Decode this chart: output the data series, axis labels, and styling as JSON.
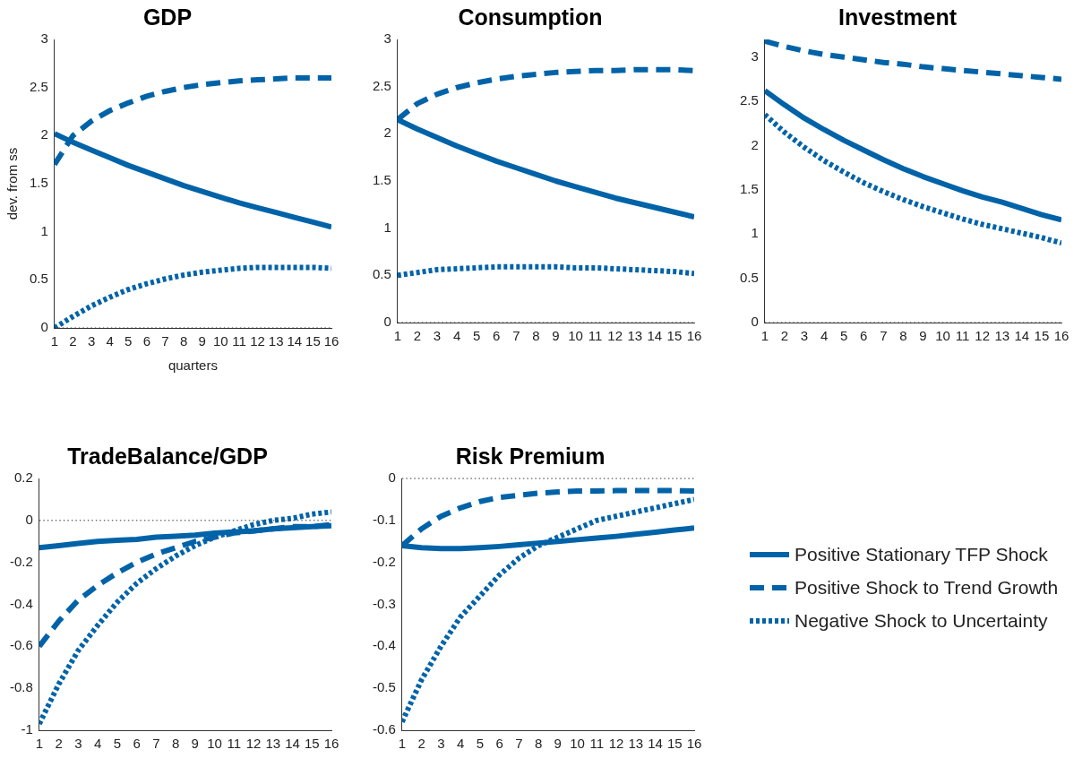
{
  "chart_data": [
    {
      "type": "line",
      "title": "GDP",
      "xlabel": "quarters",
      "ylabel": "dev. from ss",
      "x": [
        1,
        2,
        3,
        4,
        5,
        6,
        7,
        8,
        9,
        10,
        11,
        12,
        13,
        14,
        15,
        16
      ],
      "xlim": [
        1,
        16
      ],
      "xticks": [
        1,
        2,
        3,
        4,
        5,
        6,
        7,
        8,
        9,
        10,
        11,
        12,
        13,
        14,
        15,
        16
      ],
      "ylim": [
        0,
        3
      ],
      "yticks": [
        0,
        0.5,
        1,
        1.5,
        2,
        2.5,
        3
      ],
      "grid": false,
      "legend": false,
      "ref_lines": [
        {
          "axis": "y",
          "value": 0,
          "line_style": "dotted",
          "color": "#333333"
        }
      ],
      "series": [
        {
          "color": "#0063a8",
          "line_style": "solid",
          "values": [
            2.02,
            1.93,
            1.85,
            1.77,
            1.69,
            1.62,
            1.55,
            1.48,
            1.42,
            1.36,
            1.3,
            1.25,
            1.2,
            1.15,
            1.1,
            1.05
          ]
        },
        {
          "color": "#0063a8",
          "line_style": "dashed",
          "values": [
            1.7,
            2.0,
            2.15,
            2.26,
            2.34,
            2.41,
            2.46,
            2.5,
            2.53,
            2.55,
            2.57,
            2.58,
            2.59,
            2.6,
            2.6,
            2.6
          ]
        },
        {
          "color": "#0063a8",
          "line_style": "dotted",
          "values": [
            0.0,
            0.12,
            0.23,
            0.32,
            0.4,
            0.46,
            0.51,
            0.55,
            0.58,
            0.6,
            0.62,
            0.63,
            0.63,
            0.63,
            0.63,
            0.62
          ]
        }
      ]
    },
    {
      "type": "line",
      "title": "Consumption",
      "x": [
        1,
        2,
        3,
        4,
        5,
        6,
        7,
        8,
        9,
        10,
        11,
        12,
        13,
        14,
        15,
        16
      ],
      "xlim": [
        1,
        16
      ],
      "xticks": [
        1,
        2,
        3,
        4,
        5,
        6,
        7,
        8,
        9,
        10,
        11,
        12,
        13,
        14,
        15,
        16
      ],
      "ylim": [
        0,
        3
      ],
      "yticks": [
        0,
        0.5,
        1,
        1.5,
        2,
        2.5,
        3
      ],
      "grid": false,
      "legend": false,
      "ref_lines": [
        {
          "axis": "y",
          "value": 0,
          "line_style": "dotted",
          "color": "#333333"
        }
      ],
      "series": [
        {
          "color": "#0063a8",
          "line_style": "solid",
          "values": [
            2.15,
            2.05,
            1.96,
            1.87,
            1.79,
            1.71,
            1.64,
            1.57,
            1.5,
            1.44,
            1.38,
            1.32,
            1.27,
            1.22,
            1.17,
            1.12
          ]
        },
        {
          "color": "#0063a8",
          "line_style": "dashed",
          "values": [
            2.15,
            2.32,
            2.42,
            2.49,
            2.54,
            2.58,
            2.61,
            2.63,
            2.65,
            2.66,
            2.67,
            2.67,
            2.68,
            2.68,
            2.68,
            2.67
          ]
        },
        {
          "color": "#0063a8",
          "line_style": "dotted",
          "values": [
            0.5,
            0.53,
            0.56,
            0.57,
            0.58,
            0.59,
            0.59,
            0.59,
            0.59,
            0.58,
            0.58,
            0.57,
            0.56,
            0.55,
            0.54,
            0.52
          ]
        }
      ]
    },
    {
      "type": "line",
      "title": "Investment",
      "x": [
        1,
        2,
        3,
        4,
        5,
        6,
        7,
        8,
        9,
        10,
        11,
        12,
        13,
        14,
        15,
        16
      ],
      "xlim": [
        1,
        16
      ],
      "xticks": [
        1,
        2,
        3,
        4,
        5,
        6,
        7,
        8,
        9,
        10,
        11,
        12,
        13,
        14,
        15,
        16
      ],
      "ylim": [
        0,
        3.2
      ],
      "yticks": [
        0,
        0.5,
        1,
        1.5,
        2,
        2.5,
        3
      ],
      "grid": false,
      "legend": false,
      "ref_lines": [
        {
          "axis": "y",
          "value": 0,
          "line_style": "dotted",
          "color": "#333333"
        }
      ],
      "series": [
        {
          "color": "#0063a8",
          "line_style": "solid",
          "values": [
            2.62,
            2.46,
            2.31,
            2.18,
            2.06,
            1.95,
            1.84,
            1.74,
            1.65,
            1.57,
            1.49,
            1.42,
            1.36,
            1.29,
            1.22,
            1.16
          ]
        },
        {
          "color": "#0063a8",
          "line_style": "dashed",
          "values": [
            3.18,
            3.12,
            3.07,
            3.03,
            3.0,
            2.97,
            2.94,
            2.92,
            2.89,
            2.87,
            2.85,
            2.83,
            2.81,
            2.79,
            2.77,
            2.75
          ]
        },
        {
          "color": "#0063a8",
          "line_style": "dotted",
          "values": [
            2.35,
            2.15,
            1.98,
            1.83,
            1.7,
            1.58,
            1.48,
            1.39,
            1.31,
            1.24,
            1.17,
            1.11,
            1.06,
            1.01,
            0.96,
            0.9
          ]
        }
      ]
    },
    {
      "type": "line",
      "title": "TradeBalance/GDP",
      "x": [
        1,
        2,
        3,
        4,
        5,
        6,
        7,
        8,
        9,
        10,
        11,
        12,
        13,
        14,
        15,
        16
      ],
      "xlim": [
        1,
        16
      ],
      "xticks": [
        1,
        2,
        3,
        4,
        5,
        6,
        7,
        8,
        9,
        10,
        11,
        12,
        13,
        14,
        15,
        16
      ],
      "ylim": [
        -1,
        0.2
      ],
      "yticks": [
        -1,
        -0.8,
        -0.6,
        -0.4,
        -0.2,
        0,
        0.2
      ],
      "grid": false,
      "legend": false,
      "ref_lines": [
        {
          "axis": "y",
          "value": 0,
          "line_style": "dotted",
          "color": "#333333"
        }
      ],
      "series": [
        {
          "color": "#0063a8",
          "line_style": "solid",
          "values": [
            -0.13,
            -0.12,
            -0.11,
            -0.1,
            -0.095,
            -0.09,
            -0.08,
            -0.075,
            -0.07,
            -0.06,
            -0.055,
            -0.05,
            -0.04,
            -0.035,
            -0.03,
            -0.025
          ]
        },
        {
          "color": "#0063a8",
          "line_style": "dashed",
          "values": [
            -0.6,
            -0.48,
            -0.38,
            -0.31,
            -0.25,
            -0.2,
            -0.16,
            -0.13,
            -0.1,
            -0.08,
            -0.06,
            -0.05,
            -0.04,
            -0.03,
            -0.03,
            -0.02
          ]
        },
        {
          "color": "#0063a8",
          "line_style": "dotted",
          "values": [
            -0.97,
            -0.78,
            -0.62,
            -0.5,
            -0.39,
            -0.3,
            -0.23,
            -0.17,
            -0.12,
            -0.08,
            -0.05,
            -0.02,
            0.0,
            0.01,
            0.03,
            0.04
          ]
        }
      ]
    },
    {
      "type": "line",
      "title": "Risk Premium",
      "x": [
        1,
        2,
        3,
        4,
        5,
        6,
        7,
        8,
        9,
        10,
        11,
        12,
        13,
        14,
        15,
        16
      ],
      "xlim": [
        1,
        16
      ],
      "xticks": [
        1,
        2,
        3,
        4,
        5,
        6,
        7,
        8,
        9,
        10,
        11,
        12,
        13,
        14,
        15,
        16
      ],
      "ylim": [
        -0.6,
        0
      ],
      "yticks": [
        -0.6,
        -0.5,
        -0.4,
        -0.3,
        -0.2,
        -0.1,
        0
      ],
      "grid": false,
      "legend": "right",
      "ref_lines": [
        {
          "axis": "y",
          "value": 0,
          "line_style": "dotted",
          "color": "#333333"
        }
      ],
      "series": [
        {
          "name": "Positive Stationary TFP Shock",
          "color": "#0063a8",
          "line_style": "solid",
          "values": [
            -0.16,
            -0.165,
            -0.167,
            -0.167,
            -0.165,
            -0.162,
            -0.158,
            -0.154,
            -0.15,
            -0.146,
            -0.142,
            -0.138,
            -0.133,
            -0.128,
            -0.123,
            -0.118
          ]
        },
        {
          "name": "Positive Shock to Trend Growth",
          "color": "#0063a8",
          "line_style": "dashed",
          "values": [
            -0.16,
            -0.12,
            -0.09,
            -0.07,
            -0.055,
            -0.045,
            -0.04,
            -0.035,
            -0.032,
            -0.03,
            -0.03,
            -0.029,
            -0.029,
            -0.029,
            -0.029,
            -0.03
          ]
        },
        {
          "name": "Negative Shock to Uncertainty",
          "color": "#0063a8",
          "line_style": "dotted",
          "values": [
            -0.58,
            -0.48,
            -0.4,
            -0.33,
            -0.28,
            -0.23,
            -0.19,
            -0.16,
            -0.14,
            -0.12,
            -0.1,
            -0.09,
            -0.08,
            -0.07,
            -0.06,
            -0.05
          ]
        }
      ]
    }
  ]
}
